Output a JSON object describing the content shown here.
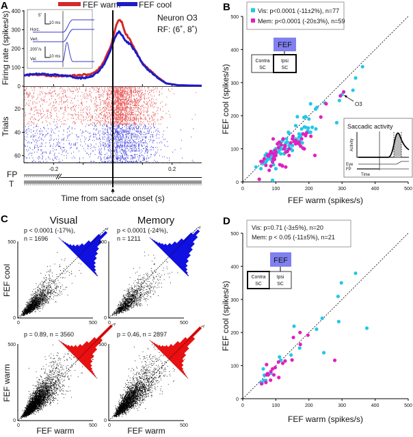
{
  "panels": {
    "A": "A",
    "B": "B",
    "C": "C",
    "D": "D"
  },
  "chart_data": [
    {
      "id": "A-psth",
      "type": "line",
      "legend": [
        "FEF warm",
        "FEF cool"
      ],
      "colors": {
        "warm": "#d42a2a",
        "cool": "#1c1cc8"
      },
      "ylabel": "Firing rate (spikes/s)",
      "xlabel": "Time from saccade onset (s)",
      "xlim": [
        -0.3,
        0.3
      ],
      "ylim": [
        0,
        400
      ],
      "yticks": [
        0,
        100,
        200,
        300,
        400
      ],
      "xticks": [
        -0.2,
        0.2
      ],
      "annotation": [
        "Neuron O3",
        "RF: (6˚, 8˚)"
      ],
      "series": [
        {
          "name": "FEF warm",
          "t": [
            -0.3,
            -0.25,
            -0.2,
            -0.15,
            -0.1,
            -0.07,
            -0.05,
            -0.03,
            -0.01,
            0.0,
            0.01,
            0.02,
            0.03,
            0.04,
            0.06,
            0.08,
            0.1,
            0.12,
            0.15,
            0.18,
            0.22,
            0.3
          ],
          "rate": [
            58,
            60,
            55,
            55,
            60,
            65,
            85,
            130,
            200,
            250,
            320,
            355,
            340,
            290,
            240,
            180,
            120,
            90,
            50,
            15,
            5,
            2
          ]
        },
        {
          "name": "FEF cool",
          "t": [
            -0.3,
            -0.25,
            -0.2,
            -0.15,
            -0.12,
            -0.1,
            -0.07,
            -0.05,
            -0.03,
            -0.01,
            0.0,
            0.01,
            0.02,
            0.03,
            0.04,
            0.06,
            0.08,
            0.1,
            0.12,
            0.15,
            0.18,
            0.22,
            0.3
          ],
          "rate": [
            60,
            65,
            60,
            55,
            45,
            42,
            55,
            75,
            115,
            180,
            230,
            270,
            290,
            275,
            245,
            220,
            175,
            120,
            85,
            45,
            15,
            5,
            2
          ]
        }
      ],
      "inset": {
        "horz": "Horz.",
        "vert": "Vert.",
        "vel": "Vel.",
        "pos_scale": "5˚",
        "vel_scale": "200˚/s",
        "time_scale": "10 ms"
      }
    },
    {
      "id": "A-raster",
      "type": "scatter",
      "ylabel": "Trials",
      "yticks": [
        20,
        40,
        60
      ],
      "trials": {
        "warm": [
          1,
          33
        ],
        "cool": [
          34,
          66
        ]
      },
      "event_labels": [
        "FP",
        "T"
      ]
    },
    {
      "id": "B",
      "type": "scatter",
      "xlabel": "FEF warm (spikes/s)",
      "ylabel": "FEF cool (spikes/s)",
      "xlim": [
        0,
        500
      ],
      "ylim": [
        0,
        500
      ],
      "ticks": [
        0,
        100,
        200,
        300,
        400,
        500
      ],
      "legend": [
        "Vis: p<0.0001 (-11±2%), n=77",
        "Mem: p<0.0001 (-20±3%), n=59"
      ],
      "colors": {
        "vis": "#22c8e8",
        "mem": "#e020c0"
      },
      "diagram": {
        "top": "FEF",
        "left": [
          "Contra",
          "SC"
        ],
        "right": [
          "Ipsi",
          "SC"
        ],
        "highlight": "right"
      },
      "annotation": "O3",
      "inset": {
        "title": "Saccadic activity",
        "ylabel": "Activity",
        "rows": [
          "Eye",
          "FP"
        ],
        "xlabel": "Time"
      },
      "series": [
        {
          "name": "Vis",
          "points": [
            [
              362,
              348
            ],
            [
              341,
              314
            ],
            [
              333,
              277
            ],
            [
              300,
              264
            ],
            [
              292,
              246
            ],
            [
              284,
              179
            ],
            [
              248,
              239
            ],
            [
              224,
              225
            ],
            [
              205,
              236
            ],
            [
              221,
              160
            ],
            [
              190,
              197
            ],
            [
              185,
              195
            ],
            [
              200,
              190
            ],
            [
              198,
              163
            ],
            [
              196,
              154
            ],
            [
              200,
              150
            ],
            [
              186,
              166
            ],
            [
              180,
              145
            ],
            [
              170,
              145
            ],
            [
              165,
              197
            ],
            [
              160,
              170
            ],
            [
              172,
              123
            ],
            [
              180,
              118
            ],
            [
              175,
              138
            ],
            [
              155,
              128
            ],
            [
              140,
              147
            ],
            [
              138,
              150
            ],
            [
              132,
              130
            ],
            [
              130,
              118
            ],
            [
              125,
              110
            ],
            [
              120,
              100
            ],
            [
              115,
              100
            ],
            [
              113,
              108
            ],
            [
              112,
              120
            ],
            [
              105,
              115
            ],
            [
              106,
              90
            ],
            [
              100,
              85
            ],
            [
              95,
              80
            ],
            [
              92,
              88
            ],
            [
              90,
              70
            ],
            [
              88,
              75
            ],
            [
              85,
              68
            ],
            [
              80,
              80
            ],
            [
              78,
              75
            ],
            [
              74,
              66
            ],
            [
              70,
              60
            ],
            [
              68,
              80
            ],
            [
              72,
              85
            ],
            [
              66,
              58
            ],
            [
              60,
              55
            ],
            [
              55,
              40
            ],
            [
              40,
              45
            ],
            [
              100,
              40
            ],
            [
              93,
              52
            ],
            [
              90,
              5
            ],
            [
              125,
              85
            ],
            [
              135,
              120
            ],
            [
              145,
              100
            ],
            [
              150,
              95
            ],
            [
              160,
              130
            ],
            [
              170,
              135
            ],
            [
              178,
              160
            ],
            [
              190,
              165
            ],
            [
              210,
              165
            ],
            [
              205,
              150
            ],
            [
              220,
              220
            ],
            [
              120,
              125
            ],
            [
              110,
              95
            ],
            [
              100,
              100
            ],
            [
              95,
              95
            ],
            [
              140,
              110
            ],
            [
              130,
              100
            ],
            [
              115,
              85
            ],
            [
              85,
              82
            ],
            [
              150,
              110
            ],
            [
              165,
              125
            ],
            [
              75,
              70
            ]
          ]
        },
        {
          "name": "Mem",
          "points": [
            [
              305,
              272
            ],
            [
              295,
              260
            ],
            [
              252,
              236
            ],
            [
              236,
              196
            ],
            [
              218,
              80
            ],
            [
              206,
              138
            ],
            [
              193,
              148
            ],
            [
              190,
              140
            ],
            [
              183,
              145
            ],
            [
              182,
              102
            ],
            [
              175,
              108
            ],
            [
              170,
              120
            ],
            [
              165,
              118
            ],
            [
              160,
              115
            ],
            [
              155,
              122
            ],
            [
              150,
              130
            ],
            [
              145,
              118
            ],
            [
              140,
              80
            ],
            [
              135,
              92
            ],
            [
              130,
              90
            ],
            [
              128,
              110
            ],
            [
              125,
              100
            ],
            [
              122,
              130
            ],
            [
              120,
              48
            ],
            [
              118,
              50
            ],
            [
              112,
              52
            ],
            [
              110,
              120
            ],
            [
              105,
              115
            ],
            [
              100,
              90
            ],
            [
              98,
              95
            ],
            [
              95,
              75
            ],
            [
              92,
              130
            ],
            [
              92,
              70
            ],
            [
              90,
              60
            ],
            [
              88,
              88
            ],
            [
              85,
              92
            ],
            [
              82,
              85
            ],
            [
              80,
              35
            ],
            [
              78,
              78
            ],
            [
              75,
              80
            ],
            [
              70,
              50
            ],
            [
              65,
              70
            ],
            [
              60,
              62
            ],
            [
              55,
              62
            ],
            [
              50,
              8
            ],
            [
              130,
              45
            ],
            [
              140,
              100
            ],
            [
              128,
              108
            ],
            [
              100,
              80
            ],
            [
              96,
              68
            ],
            [
              94,
              84
            ],
            [
              85,
              48
            ],
            [
              116,
              112
            ],
            [
              108,
              104
            ],
            [
              152,
              138
            ],
            [
              160,
              125
            ],
            [
              170,
              115
            ],
            [
              178,
              130
            ],
            [
              186,
              100
            ]
          ]
        }
      ]
    },
    {
      "id": "C-visual-cool",
      "type": "scatter",
      "title": "Visual",
      "stats": [
        "p < 0.0001 (-17%),",
        "n = 1696"
      ],
      "n": 1696,
      "effect": -0.17,
      "xlabel": "FEF warm",
      "ylabel": "FEF cool",
      "tick_labels": [
        "0",
        "500"
      ],
      "lim": [
        0,
        500
      ],
      "histogram_color": "#1010e0",
      "histogram": [
        0,
        0,
        1,
        2,
        3,
        5,
        8,
        12,
        18,
        28,
        45,
        55,
        40,
        30,
        24,
        18,
        12,
        8,
        5,
        2,
        1
      ]
    },
    {
      "id": "C-memory-cool",
      "type": "scatter",
      "title": "Memory",
      "stats": [
        "p < 0.0001 (-24%),",
        "n = 1211"
      ],
      "n": 1211,
      "effect": -0.24,
      "xlabel": "FEF warm",
      "ylabel": "FEF cool",
      "tick_labels": [
        "0",
        "500"
      ],
      "lim": [
        0,
        500
      ],
      "histogram_color": "#1010e0",
      "histogram": [
        0,
        1,
        2,
        3,
        5,
        7,
        10,
        15,
        22,
        32,
        48,
        58,
        50,
        40,
        32,
        24,
        16,
        10,
        6,
        3,
        1
      ]
    },
    {
      "id": "C-visual-warm",
      "type": "scatter",
      "stats": [
        "p = 0.89, n = 3560"
      ],
      "n": 3560,
      "effect": 0.0,
      "xlabel": "FEF warm",
      "ylabel": "FEF warm",
      "tick_labels": [
        "0",
        "500"
      ],
      "lim": [
        0,
        500
      ],
      "histogram_color": "#e81010",
      "histogram": [
        0,
        1,
        2,
        3,
        5,
        8,
        12,
        18,
        28,
        40,
        70,
        45,
        30,
        20,
        13,
        8,
        5,
        3,
        2,
        1,
        0
      ]
    },
    {
      "id": "C-memory-warm",
      "type": "scatter",
      "stats": [
        "p = 0.46, n = 2897"
      ],
      "n": 2897,
      "effect": 0.0,
      "xlabel": "FEF warm",
      "ylabel": "FEF warm",
      "tick_labels": [
        "0",
        "500"
      ],
      "lim": [
        0,
        500
      ],
      "histogram_color": "#e81010",
      "histogram": [
        0,
        1,
        2,
        3,
        5,
        8,
        12,
        18,
        28,
        40,
        66,
        48,
        32,
        22,
        14,
        9,
        5,
        3,
        2,
        1,
        0
      ]
    },
    {
      "id": "D",
      "type": "scatter",
      "xlabel": "FEF warm (spikes/s)",
      "ylabel": "FEF cool (spikes/s)",
      "xlim": [
        0,
        500
      ],
      "ylim": [
        0,
        500
      ],
      "ticks": [
        0,
        100,
        200,
        300,
        400,
        500
      ],
      "legend": [
        "Vis: p=0.71 (-3±5%), n=20",
        "Mem: p < 0.05 (-11±5%), n=21"
      ],
      "colors": {
        "vis": "#22c8e8",
        "mem": "#e020c0"
      },
      "diagram": {
        "top": "FEF",
        "left": [
          "Contra",
          "SC"
        ],
        "right": [
          "Ipsi",
          "SC"
        ],
        "highlight": "left"
      },
      "series": [
        {
          "name": "Vis",
          "points": [
            [
              341,
              379
            ],
            [
              298,
              350
            ],
            [
              288,
              309
            ],
            [
              240,
              243
            ],
            [
              290,
              233
            ],
            [
              375,
              213
            ],
            [
              223,
              210
            ],
            [
              155,
              219
            ],
            [
              172,
              153
            ],
            [
              245,
              139
            ],
            [
              146,
              132
            ],
            [
              111,
              126
            ],
            [
              115,
              116
            ],
            [
              62,
              90
            ],
            [
              65,
              71
            ],
            [
              64,
              55
            ],
            [
              70,
              55
            ],
            [
              55,
              50
            ],
            [
              85,
              77
            ],
            [
              58,
              46
            ]
          ]
        },
        {
          "name": "Mem",
          "points": [
            [
              278,
              116
            ],
            [
              173,
              200
            ],
            [
              197,
              192
            ],
            [
              153,
              185
            ],
            [
              174,
              164
            ],
            [
              149,
              117
            ],
            [
              128,
              114
            ],
            [
              121,
              107
            ],
            [
              108,
              111
            ],
            [
              98,
              94
            ],
            [
              109,
              64
            ],
            [
              94,
              72
            ],
            [
              85,
              82
            ],
            [
              72,
              72
            ],
            [
              77,
              72
            ],
            [
              72,
              103
            ],
            [
              84,
              56
            ],
            [
              70,
              49
            ],
            [
              57,
              45
            ],
            [
              75,
              76
            ],
            [
              90,
              90
            ]
          ]
        }
      ]
    }
  ]
}
